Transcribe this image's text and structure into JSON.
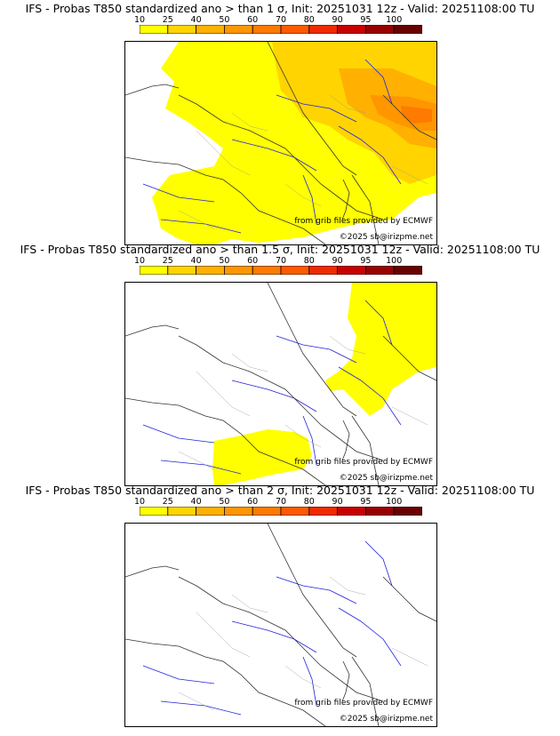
{
  "colorbar": {
    "labels": [
      "10",
      "25",
      "40",
      "50",
      "60",
      "70",
      "80",
      "90",
      "95",
      "100"
    ],
    "colors": [
      "#ffff00",
      "#ffd400",
      "#ffb000",
      "#ff9600",
      "#ff7a00",
      "#ff5a00",
      "#f02a00",
      "#c80000",
      "#990000",
      "#6a0000"
    ]
  },
  "panels": [
    {
      "title": "IFS - Probas T850  standardized ano > than 1 σ, Init: 20251031 12z - Valid: 20251108:00 TU",
      "threshold_sigma": 1,
      "probability_field_levels": [
        "10",
        "25",
        "40",
        "50"
      ]
    },
    {
      "title": "IFS - Probas T850  standardized ano > than 1.5 σ, Init: 20251031 12z - Valid: 20251108:00 TU",
      "threshold_sigma": 1.5,
      "probability_field_levels": [
        "10"
      ]
    },
    {
      "title": "IFS - Probas T850  standardized ano > than 2 σ, Init: 20251031 12z - Valid: 20251108:00 TU",
      "threshold_sigma": 2,
      "probability_field_levels": []
    }
  ],
  "credits": {
    "grib": "from grib files provided by ECMWF",
    "copyright": "©2025 sb@irizpme.net"
  }
}
